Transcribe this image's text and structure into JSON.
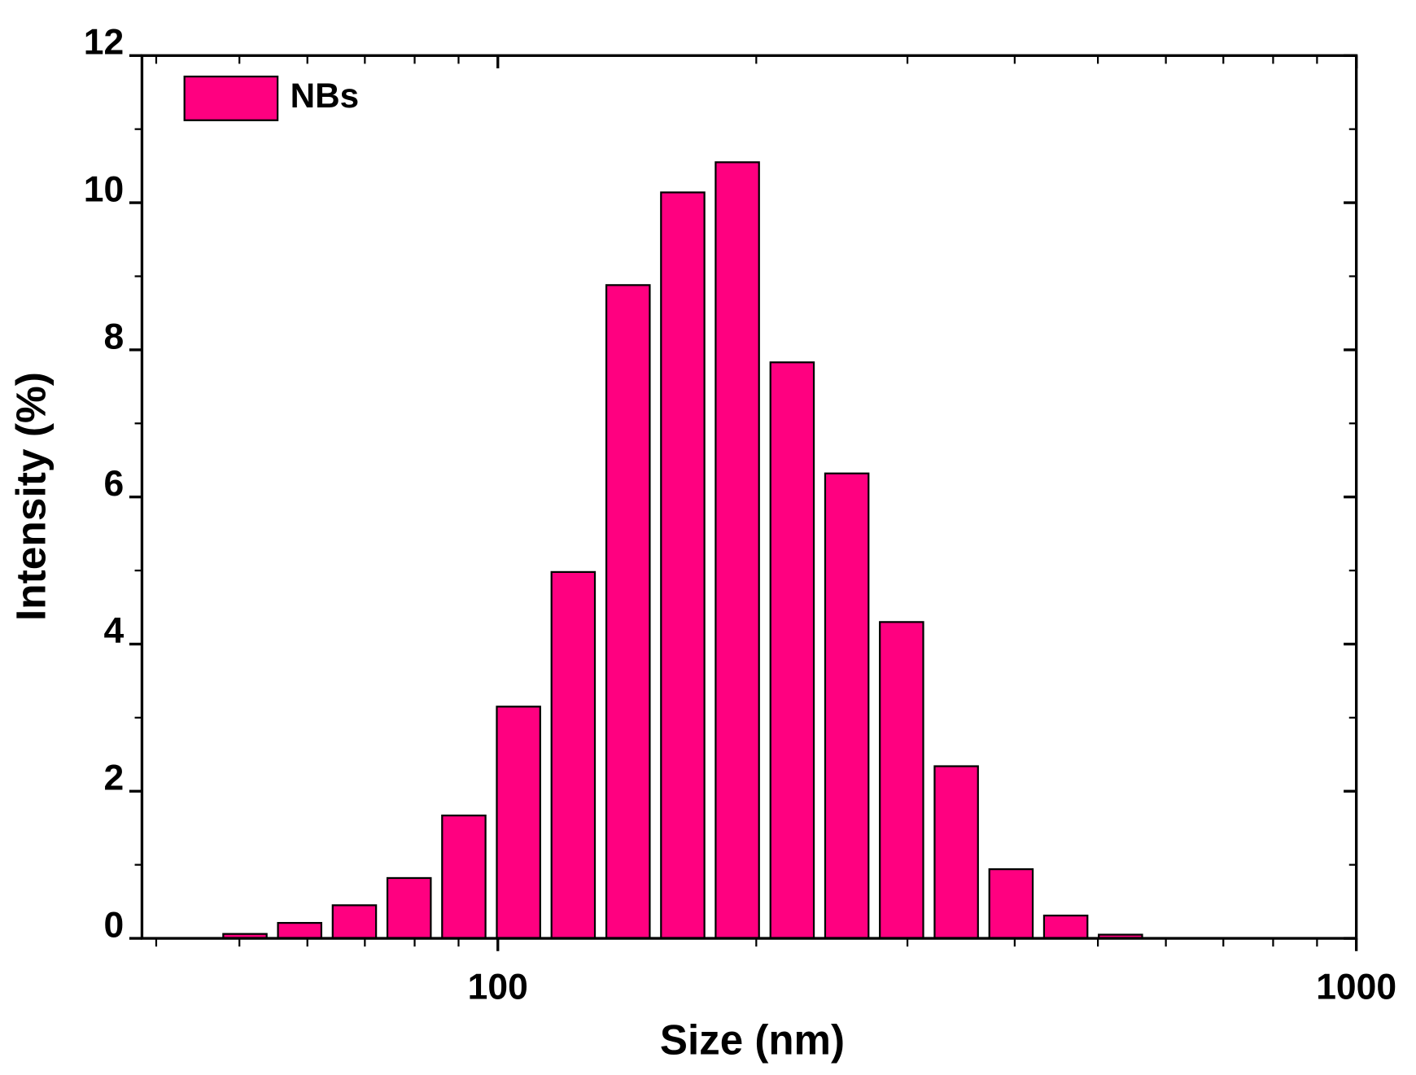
{
  "chart_data": {
    "type": "bar",
    "x_label": "Size (nm)",
    "y_label": "Intensity (%)",
    "x": [
      50.75,
      58.77,
      68.06,
      78.82,
      91.28,
      105.7,
      122.4,
      141.8,
      164.2,
      190.1,
      220.2,
      255.0,
      295.3,
      342.0,
      396.1,
      458.7,
      531.2
    ],
    "series": [
      {
        "name": "NBs",
        "color": "#ff0080",
        "values": [
          0.06,
          0.21,
          0.45,
          0.82,
          1.67,
          3.15,
          4.98,
          8.88,
          10.14,
          10.55,
          7.83,
          6.32,
          4.3,
          2.34,
          0.94,
          0.31,
          0.05
        ]
      }
    ],
    "xlim": [
      38.5,
      1000
    ],
    "xscale": "log",
    "xticks": [
      100,
      1000
    ],
    "xminorticks": [
      40,
      50,
      60,
      70,
      80,
      90,
      200,
      300,
      400,
      500,
      600,
      700,
      800,
      900
    ],
    "ylim": [
      0,
      12
    ],
    "yticks": [
      0,
      2,
      4,
      6,
      8,
      10,
      12
    ],
    "yminorticks": [
      1,
      3,
      5,
      7,
      9,
      11
    ],
    "legend": "upper left"
  }
}
